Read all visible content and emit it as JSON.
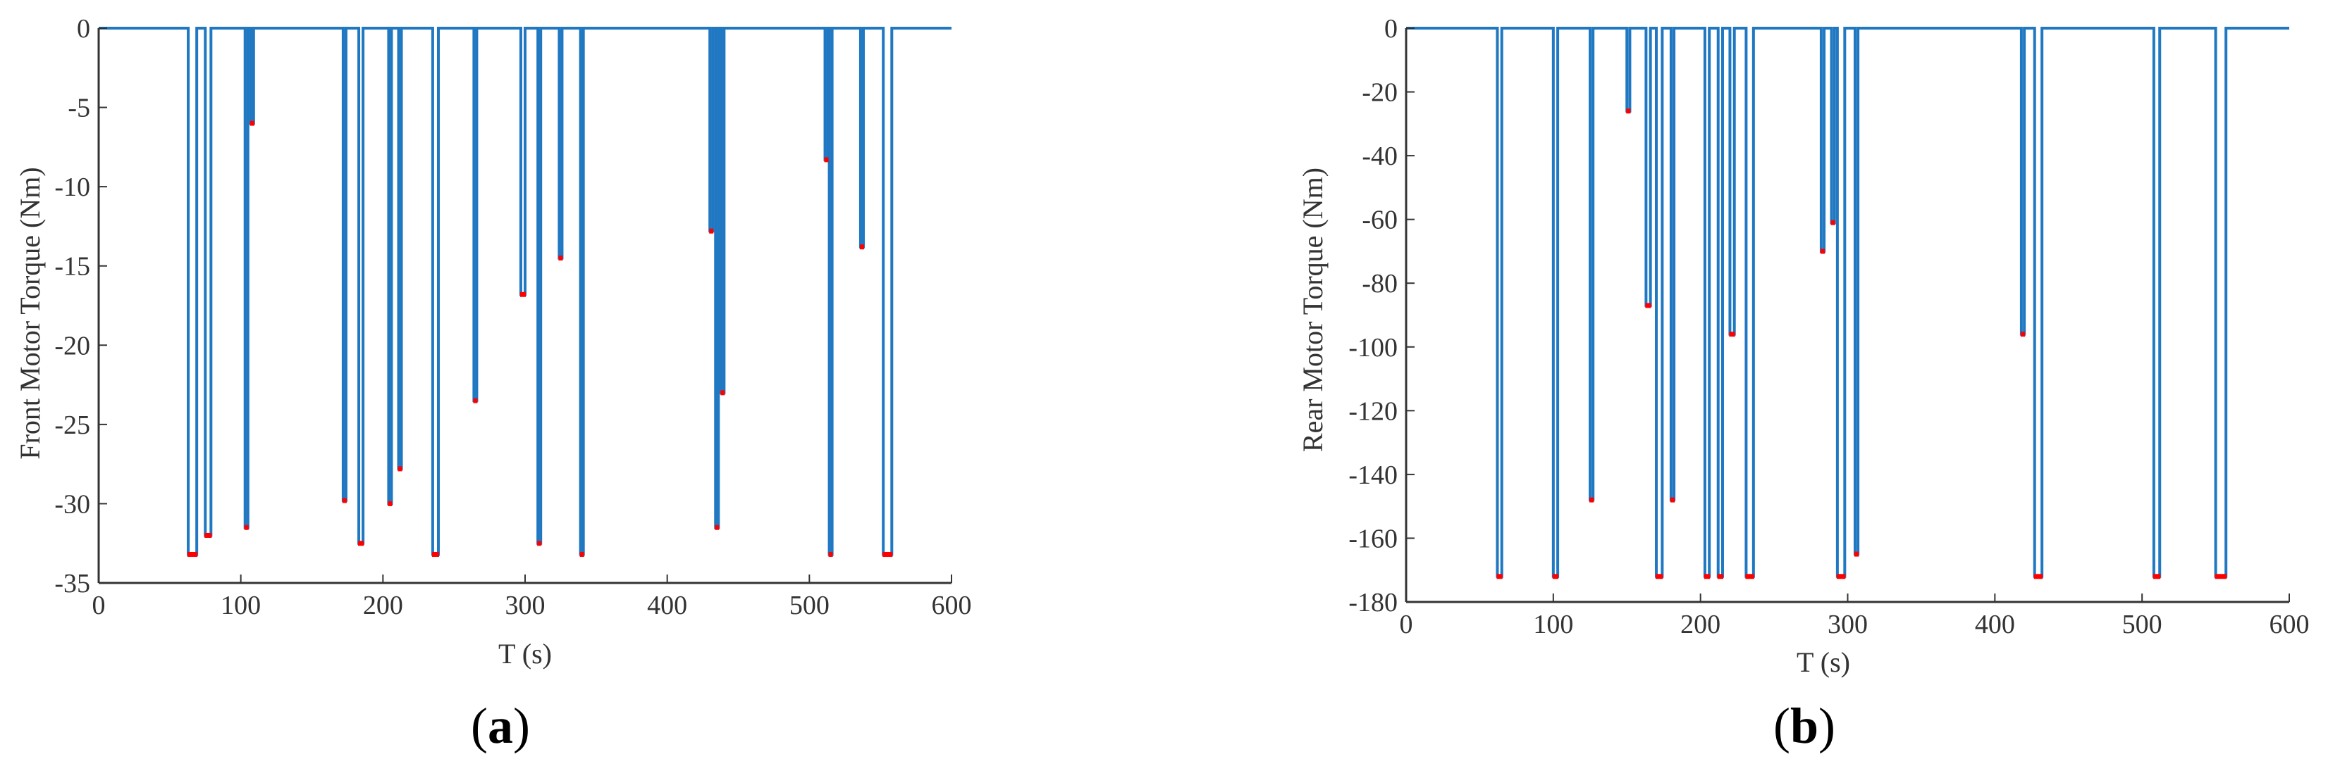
{
  "colors": {
    "series": "#1f78c1",
    "highlight": "#ff0000",
    "axis": "#333333"
  },
  "chart_data": [
    {
      "type": "line",
      "panel_label": "a",
      "xlabel": "T (s)",
      "ylabel": "Front Motor Torque (Nm)",
      "xlim": [
        0,
        600
      ],
      "ylim": [
        -35,
        0
      ],
      "xticks": [
        0,
        100,
        200,
        300,
        400,
        500,
        600
      ],
      "yticks": [
        0,
        -5,
        -10,
        -15,
        -20,
        -25,
        -30,
        -35
      ],
      "grid": false,
      "spikes": [
        {
          "x": 63,
          "w": 6,
          "y": -33.2
        },
        {
          "x": 75,
          "w": 4,
          "y": -32.0
        },
        {
          "x": 103,
          "w": 2,
          "y": -31.5
        },
        {
          "x": 107,
          "w": 2,
          "y": -6.0
        },
        {
          "x": 172,
          "w": 2,
          "y": -29.8
        },
        {
          "x": 183,
          "w": 3,
          "y": -32.5
        },
        {
          "x": 204,
          "w": 2,
          "y": -30.0
        },
        {
          "x": 211,
          "w": 2,
          "y": -27.8
        },
        {
          "x": 235,
          "w": 4,
          "y": -33.2
        },
        {
          "x": 264,
          "w": 2,
          "y": -23.5
        },
        {
          "x": 297,
          "w": 3,
          "y": -16.8
        },
        {
          "x": 309,
          "w": 2,
          "y": -32.5
        },
        {
          "x": 324,
          "w": 2,
          "y": -14.5
        },
        {
          "x": 339,
          "w": 2,
          "y": -33.2
        },
        {
          "x": 430,
          "w": 2,
          "y": -12.8
        },
        {
          "x": 434,
          "w": 2,
          "y": -31.5
        },
        {
          "x": 438,
          "w": 2,
          "y": -23.0
        },
        {
          "x": 511,
          "w": 2,
          "y": -8.3
        },
        {
          "x": 514,
          "w": 2,
          "y": -33.2
        },
        {
          "x": 536,
          "w": 2,
          "y": -13.8
        },
        {
          "x": 552,
          "w": 6,
          "y": -33.2
        }
      ]
    },
    {
      "type": "line",
      "panel_label": "b",
      "xlabel": "T (s)",
      "ylabel": "Rear Motor Torque (Nm)",
      "xlim": [
        0,
        600
      ],
      "ylim": [
        -180,
        0
      ],
      "xticks": [
        0,
        100,
        200,
        300,
        400,
        500,
        600
      ],
      "yticks": [
        0,
        -20,
        -40,
        -60,
        -80,
        -100,
        -120,
        -140,
        -160,
        -180
      ],
      "grid": false,
      "spikes": [
        {
          "x": 62,
          "w": 3,
          "y": -172
        },
        {
          "x": 100,
          "w": 3,
          "y": -172
        },
        {
          "x": 125,
          "w": 2,
          "y": -148
        },
        {
          "x": 150,
          "w": 2,
          "y": -26
        },
        {
          "x": 163,
          "w": 3,
          "y": -87
        },
        {
          "x": 170,
          "w": 4,
          "y": -172
        },
        {
          "x": 180,
          "w": 2,
          "y": -148
        },
        {
          "x": 203,
          "w": 3,
          "y": -172
        },
        {
          "x": 212,
          "w": 3,
          "y": -172
        },
        {
          "x": 220,
          "w": 3,
          "y": -96
        },
        {
          "x": 231,
          "w": 5,
          "y": -172
        },
        {
          "x": 282,
          "w": 2,
          "y": -70
        },
        {
          "x": 289,
          "w": 2,
          "y": -61
        },
        {
          "x": 293,
          "w": 5,
          "y": -172
        },
        {
          "x": 305,
          "w": 2,
          "y": -165
        },
        {
          "x": 418,
          "w": 2,
          "y": -96
        },
        {
          "x": 427,
          "w": 5,
          "y": -172
        },
        {
          "x": 508,
          "w": 4,
          "y": -172
        },
        {
          "x": 550,
          "w": 7,
          "y": -172
        }
      ]
    }
  ]
}
